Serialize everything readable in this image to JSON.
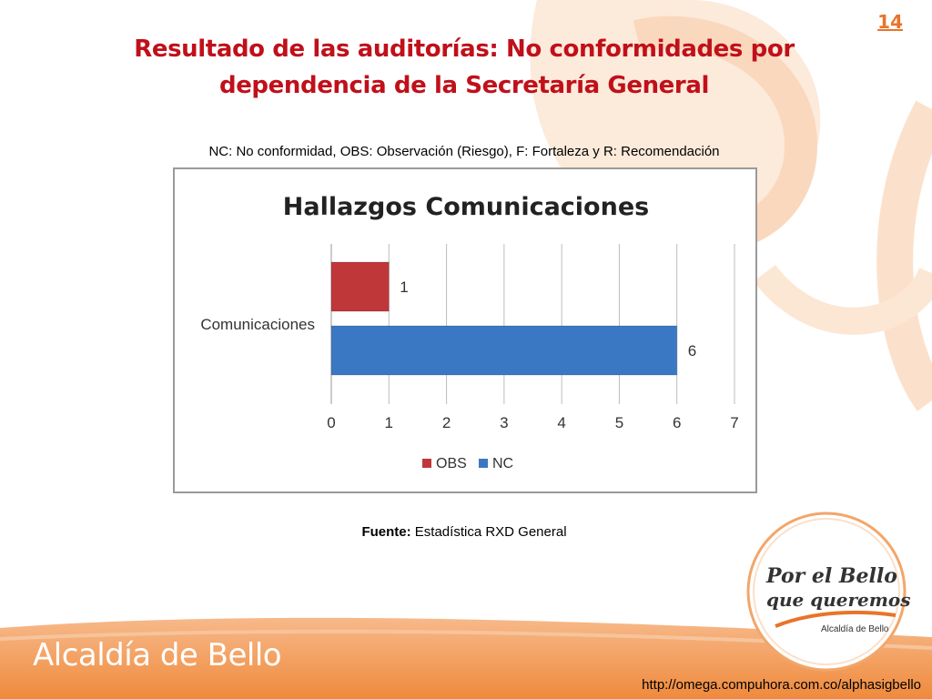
{
  "slide": {
    "page_number": "14",
    "title_line1": "Resultado de las auditorías: No conformidades por",
    "title_line2": "dependencia de la Secretaría General",
    "legend_note": "NC: No conformidad, OBS: Observación (Riesgo), F: Fortaleza y R: Recomendación",
    "source_label": "Fuente:",
    "source_text": " Estadística RXD General",
    "brand": "Alcaldía de Bello",
    "logo_line1": "Por el Bello",
    "logo_line2": "que queremos",
    "logo_line3": "Alcaldía de Bello",
    "url": "http://omega.compuhora.com.co/alphasigbello"
  },
  "colors": {
    "title": "#c0101a",
    "accent_orange": "#e8742a",
    "obs_bar": "#c0373a",
    "nc_bar": "#3a78c4"
  },
  "chart_data": {
    "type": "bar",
    "orientation": "horizontal",
    "title": "Hallazgos Comunicaciones",
    "categories": [
      "Comunicaciones"
    ],
    "series": [
      {
        "name": "OBS",
        "values": [
          1
        ],
        "color": "#c0373a"
      },
      {
        "name": "NC",
        "values": [
          6
        ],
        "color": "#3a78c4"
      }
    ],
    "x_ticks": [
      "0",
      "1",
      "2",
      "3",
      "4",
      "5",
      "6",
      "7"
    ],
    "xlim": [
      0,
      7
    ],
    "grid": true,
    "legend": "bottom"
  }
}
